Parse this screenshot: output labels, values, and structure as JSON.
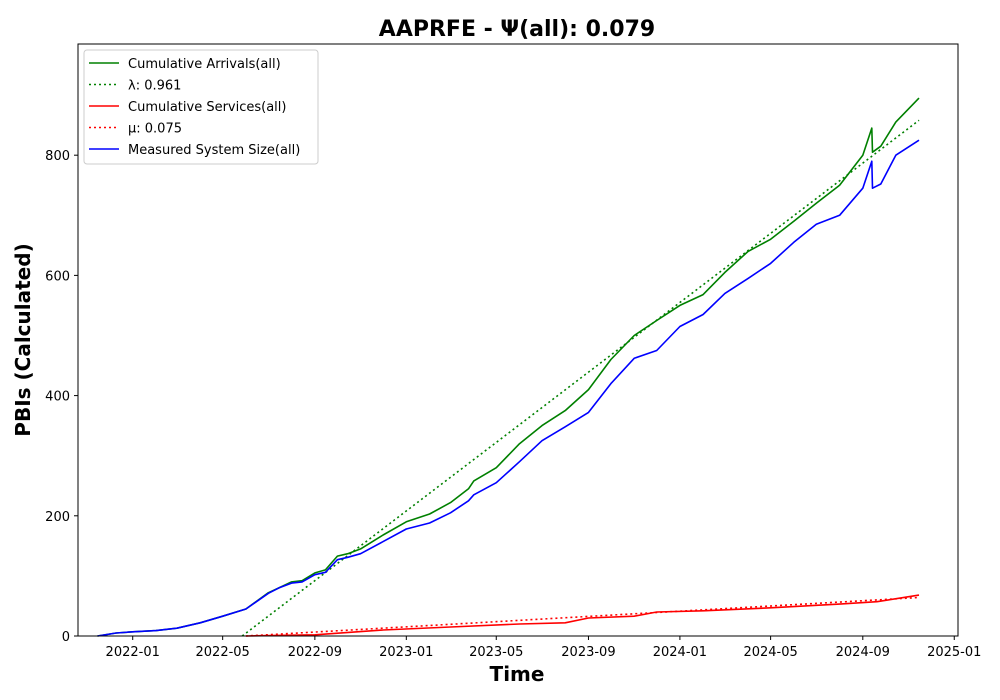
{
  "chart_data": {
    "type": "line",
    "title": "AAPRFE -  Ψ(all): 0.079",
    "xlabel": "Time",
    "ylabel": "PBIs (Calculated)",
    "x_ticks": [
      "2022-01",
      "2022-05",
      "2022-09",
      "2023-01",
      "2023-05",
      "2023-09",
      "2024-01",
      "2024-05",
      "2024-09",
      "2025-01"
    ],
    "y_ticks": [
      0,
      200,
      400,
      600,
      800
    ],
    "xlim": [
      "2021-10-20",
      "2025-01-06"
    ],
    "ylim": [
      0,
      985
    ],
    "grid": false,
    "legend_position": "upper-left",
    "series": [
      {
        "name": "Cumulative Arrivals(all)",
        "color": "#008000",
        "style": "solid",
        "x": [
          "2021-11-15",
          "2021-12-10",
          "2022-01-01",
          "2022-02-01",
          "2022-03-01",
          "2022-04-01",
          "2022-05-01",
          "2022-06-01",
          "2022-07-01",
          "2022-07-15",
          "2022-08-01",
          "2022-08-15",
          "2022-09-01",
          "2022-09-15",
          "2022-10-01",
          "2022-10-15",
          "2022-11-01",
          "2022-12-01",
          "2023-01-01",
          "2023-02-01",
          "2023-03-01",
          "2023-03-25",
          "2023-04-01",
          "2023-05-01",
          "2023-06-01",
          "2023-07-01",
          "2023-08-01",
          "2023-09-01",
          "2023-10-01",
          "2023-11-01",
          "2023-12-01",
          "2024-01-01",
          "2024-02-01",
          "2024-03-01",
          "2024-04-01",
          "2024-05-01",
          "2024-06-01",
          "2024-07-01",
          "2024-08-01",
          "2024-09-01",
          "2024-09-13",
          "2024-09-14",
          "2024-09-25",
          "2024-10-15",
          "2024-11-15"
        ],
        "y": [
          0,
          5,
          7,
          9,
          13,
          22,
          33,
          45,
          72,
          80,
          90,
          92,
          105,
          110,
          133,
          137,
          145,
          168,
          190,
          203,
          222,
          245,
          258,
          280,
          320,
          350,
          375,
          410,
          460,
          500,
          525,
          550,
          568,
          605,
          640,
          660,
          690,
          720,
          750,
          800,
          845,
          805,
          815,
          855,
          895
        ]
      },
      {
        "name": "λ: 0.961",
        "color": "#008000",
        "style": "dotted",
        "x": [
          "2022-05-27",
          "2024-11-15"
        ],
        "y": [
          0,
          858
        ]
      },
      {
        "name": "Cumulative Services(all)",
        "color": "#ff0000",
        "style": "solid",
        "x": [
          "2022-06-01",
          "2022-09-01",
          "2022-12-01",
          "2023-03-01",
          "2023-06-01",
          "2023-08-01",
          "2023-09-01",
          "2023-11-01",
          "2023-12-01",
          "2024-02-01",
          "2024-05-01",
          "2024-08-01",
          "2024-09-20",
          "2024-11-15"
        ],
        "y": [
          0,
          2,
          10,
          15,
          20,
          22,
          30,
          33,
          40,
          42,
          47,
          53,
          57,
          68
        ]
      },
      {
        "name": "μ: 0.075",
        "color": "#ff0000",
        "style": "dotted",
        "x": [
          "2022-06-01",
          "2024-11-15"
        ],
        "y": [
          0,
          64
        ]
      },
      {
        "name": "Measured System Size(all)",
        "color": "#0000ff",
        "style": "solid",
        "x": [
          "2021-11-15",
          "2021-12-10",
          "2022-01-01",
          "2022-02-01",
          "2022-03-01",
          "2022-04-01",
          "2022-05-01",
          "2022-06-01",
          "2022-07-01",
          "2022-07-15",
          "2022-08-01",
          "2022-08-15",
          "2022-09-01",
          "2022-09-15",
          "2022-10-01",
          "2022-10-15",
          "2022-11-01",
          "2022-12-01",
          "2023-01-01",
          "2023-02-01",
          "2023-03-01",
          "2023-03-25",
          "2023-04-01",
          "2023-05-01",
          "2023-06-01",
          "2023-07-01",
          "2023-08-01",
          "2023-09-01",
          "2023-10-01",
          "2023-11-01",
          "2023-12-01",
          "2024-01-01",
          "2024-02-01",
          "2024-03-01",
          "2024-04-01",
          "2024-05-01",
          "2024-06-01",
          "2024-07-01",
          "2024-08-01",
          "2024-09-01",
          "2024-09-13",
          "2024-09-14",
          "2024-09-25",
          "2024-10-15",
          "2024-11-15"
        ],
        "y": [
          0,
          5,
          7,
          9,
          13,
          22,
          33,
          45,
          71,
          80,
          88,
          90,
          102,
          106,
          127,
          131,
          137,
          157,
          178,
          188,
          205,
          225,
          235,
          255,
          290,
          325,
          348,
          372,
          420,
          462,
          475,
          515,
          535,
          570,
          595,
          620,
          655,
          685,
          700,
          745,
          790,
          745,
          752,
          800,
          825
        ]
      }
    ]
  }
}
